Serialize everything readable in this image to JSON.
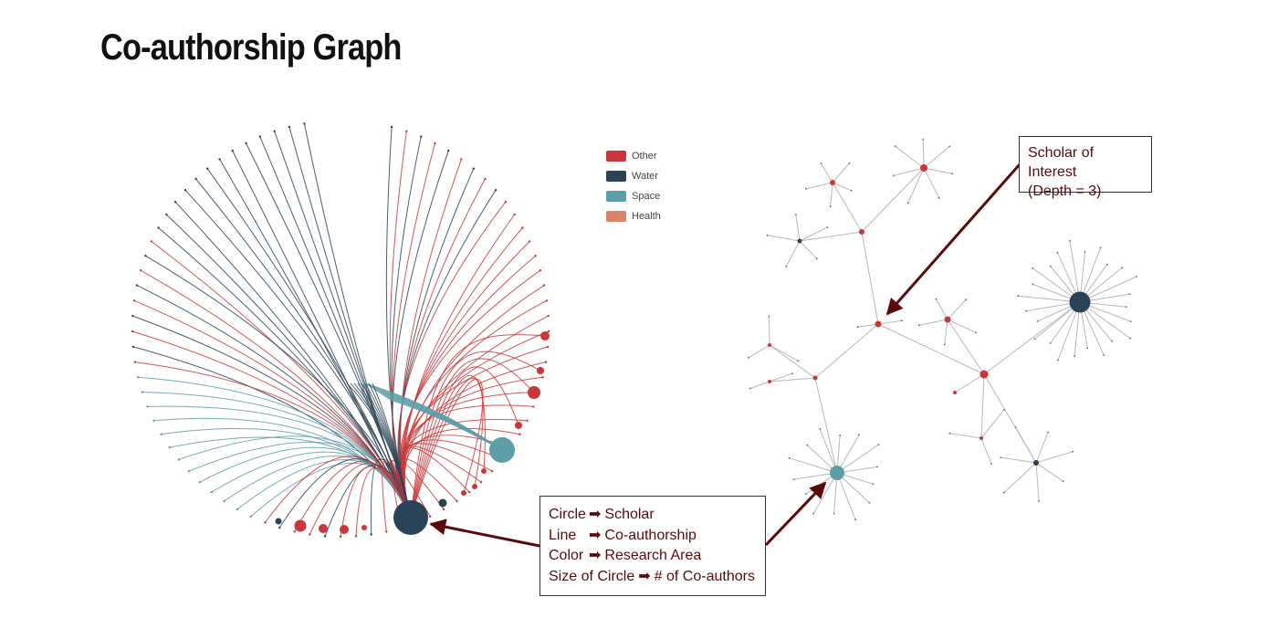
{
  "title": "Co-authorship Graph",
  "colors": {
    "other": "#c8373a",
    "water": "#2b4356",
    "space": "#5e9ea8",
    "health": "#d98568",
    "edge": "#b8b8b8",
    "annotation": "#5a0a0a"
  },
  "legend": [
    {
      "label": "Other",
      "color": "#c8373a"
    },
    {
      "label": "Water",
      "color": "#2b4356"
    },
    {
      "label": "Space",
      "color": "#5e9ea8"
    },
    {
      "label": "Health",
      "color": "#d98568"
    }
  ],
  "callout_interest": {
    "line1": "Scholar of Interest",
    "line2": "(Depth = 3)"
  },
  "callout_key": {
    "rows": [
      {
        "term": "Circle",
        "arrow": "➡",
        "meaning": "Scholar"
      },
      {
        "term": "Line",
        "arrow": "➡",
        "meaning": "Co-authorship"
      },
      {
        "term": "Color",
        "arrow": "➡",
        "meaning": "Research Area"
      },
      {
        "term": "Size of Circle",
        "arrow": "➡",
        "meaning": "# of Co-authors"
      }
    ]
  }
}
